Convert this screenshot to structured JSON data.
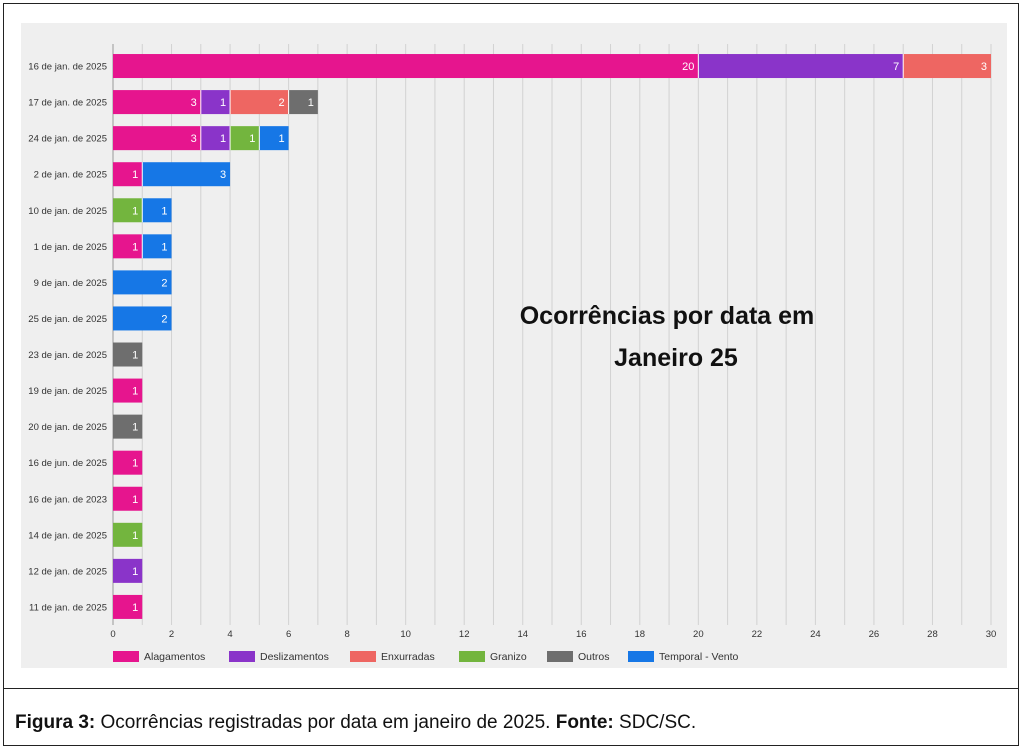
{
  "chart_data": {
    "type": "bar",
    "orientation": "horizontal",
    "stacked": true,
    "title": "Ocorrências por data em Janeiro 25",
    "title_lines": [
      "Ocorrências por data em",
      "Janeiro 25"
    ],
    "xlabel": "",
    "ylabel": "",
    "xlim": [
      0,
      30
    ],
    "xticks": [
      "0",
      "2",
      "4",
      "6",
      "8",
      "10",
      "12",
      "14",
      "16",
      "18",
      "20",
      "22",
      "24",
      "26",
      "28",
      "30"
    ],
    "grid": true,
    "legend_position": "bottom-left",
    "categories": [
      "16 de jan. de 2025",
      "17 de jan. de 2025",
      "24 de jan. de 2025",
      "2 de jan. de 2025",
      "10 de jan. de 2025",
      "1 de jan. de 2025",
      "9 de jan. de 2025",
      "25 de jan. de 2025",
      "23 de jan. de 2025",
      "19 de jan. de 2025",
      "20 de jan. de 2025",
      "16 de jun. de 2025",
      "16 de jan. de 2023",
      "14 de jan. de 2025",
      "12 de jan. de 2025",
      "11 de jan. de 2025"
    ],
    "series": [
      {
        "name": "Alagamentos",
        "color": "#e6158e",
        "values": [
          20,
          3,
          3,
          1,
          0,
          1,
          0,
          0,
          0,
          1,
          0,
          1,
          1,
          0,
          0,
          1
        ]
      },
      {
        "name": "Deslizamentos",
        "color": "#8a34c9",
        "values": [
          7,
          1,
          1,
          0,
          0,
          0,
          0,
          0,
          0,
          0,
          0,
          0,
          0,
          0,
          1,
          0
        ]
      },
      {
        "name": "Enxurradas",
        "color": "#ee6662",
        "values": [
          3,
          2,
          0,
          0,
          0,
          0,
          0,
          0,
          0,
          0,
          0,
          0,
          0,
          0,
          0,
          0
        ]
      },
      {
        "name": "Granizo",
        "color": "#73b53e",
        "values": [
          0,
          0,
          1,
          0,
          1,
          0,
          0,
          0,
          0,
          0,
          0,
          0,
          0,
          1,
          0,
          0
        ]
      },
      {
        "name": "Outros",
        "color": "#6e6e6e",
        "values": [
          0,
          1,
          0,
          0,
          0,
          0,
          0,
          0,
          1,
          0,
          1,
          0,
          0,
          0,
          0,
          0
        ]
      },
      {
        "name": "Temporal - Vento",
        "color": "#1677e6",
        "values": [
          0,
          0,
          1,
          3,
          1,
          1,
          2,
          2,
          0,
          0,
          0,
          0,
          0,
          0,
          0,
          0
        ]
      }
    ]
  },
  "caption": {
    "figure_label": "Figura 3:",
    "text": " Ocorrências registradas por data em janeiro de 2025. ",
    "source_label": "Fonte:",
    "source": " SDC/SC."
  }
}
